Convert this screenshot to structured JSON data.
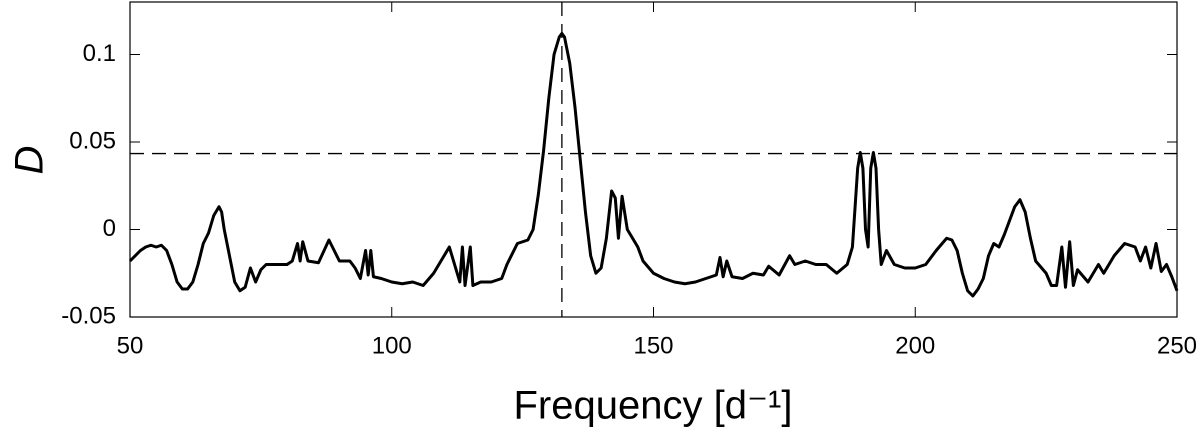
{
  "chart_data": {
    "type": "line",
    "xlabel": "Frequency [d⁻¹]",
    "ylabel": "D",
    "x": [
      50,
      52,
      53,
      54,
      55,
      56,
      57,
      58,
      59,
      60,
      61,
      62,
      63,
      64,
      65,
      66,
      67,
      67.5,
      68,
      69,
      70,
      71,
      72,
      73,
      74,
      75,
      76,
      78,
      80,
      81,
      82,
      82.5,
      83,
      84,
      86,
      88,
      89,
      90,
      92,
      93,
      94,
      95,
      95.5,
      96,
      96.5,
      98,
      100,
      102,
      104,
      106,
      108,
      110,
      111,
      112,
      113,
      113.5,
      114,
      115,
      115.5,
      117,
      119,
      121,
      122,
      124,
      126,
      127,
      128,
      129,
      130,
      131,
      132,
      132.5,
      133,
      134,
      135,
      136,
      137,
      138,
      139,
      140,
      141,
      142,
      142.7,
      143.3,
      144,
      145,
      146,
      147,
      148,
      150,
      152,
      154,
      156,
      158,
      160,
      162,
      162.7,
      163.3,
      164,
      165,
      167,
      169,
      171,
      172,
      174,
      176,
      177,
      179,
      181,
      183,
      185,
      187,
      188,
      189,
      189.5,
      190,
      190.5,
      191,
      191.5,
      192,
      192.5,
      193,
      193.5,
      194.5,
      196,
      198,
      200,
      202,
      204,
      206,
      207,
      208,
      209,
      210,
      211,
      212,
      213,
      214,
      215,
      216,
      217,
      218,
      219,
      220,
      221,
      222,
      223,
      225,
      226,
      227,
      228,
      228.7,
      229.5,
      230.2,
      231,
      233,
      235,
      236,
      238,
      240,
      242,
      243,
      244,
      245,
      246,
      247,
      248,
      249,
      250
    ],
    "series": [
      {
        "color": "#000000",
        "values": [
          -0.018,
          -0.012,
          -0.01,
          -0.009,
          -0.01,
          -0.009,
          -0.012,
          -0.02,
          -0.03,
          -0.034,
          -0.034,
          -0.03,
          -0.02,
          -0.008,
          -0.002,
          0.008,
          0.013,
          0.01,
          0.0,
          -0.015,
          -0.03,
          -0.035,
          -0.033,
          -0.022,
          -0.03,
          -0.023,
          -0.02,
          -0.02,
          -0.02,
          -0.018,
          -0.008,
          -0.018,
          -0.007,
          -0.018,
          -0.019,
          -0.006,
          -0.012,
          -0.018,
          -0.018,
          -0.022,
          -0.028,
          -0.012,
          -0.026,
          -0.012,
          -0.027,
          -0.028,
          -0.03,
          -0.031,
          -0.03,
          -0.032,
          -0.025,
          -0.015,
          -0.01,
          -0.02,
          -0.03,
          -0.01,
          -0.032,
          -0.01,
          -0.032,
          -0.03,
          -0.03,
          -0.028,
          -0.02,
          -0.008,
          -0.006,
          0.0,
          0.02,
          0.045,
          0.075,
          0.1,
          0.11,
          0.112,
          0.11,
          0.095,
          0.07,
          0.04,
          0.01,
          -0.015,
          -0.025,
          -0.022,
          -0.005,
          0.022,
          0.018,
          -0.005,
          0.019,
          0.0,
          -0.005,
          -0.01,
          -0.018,
          -0.025,
          -0.028,
          -0.03,
          -0.031,
          -0.03,
          -0.028,
          -0.026,
          -0.016,
          -0.027,
          -0.018,
          -0.027,
          -0.028,
          -0.025,
          -0.026,
          -0.021,
          -0.026,
          -0.015,
          -0.02,
          -0.018,
          -0.02,
          -0.02,
          -0.025,
          -0.02,
          -0.01,
          0.035,
          0.044,
          0.035,
          0.0,
          -0.01,
          0.035,
          0.044,
          0.035,
          0.0,
          -0.02,
          -0.012,
          -0.02,
          -0.022,
          -0.022,
          -0.02,
          -0.012,
          -0.005,
          -0.006,
          -0.012,
          -0.025,
          -0.035,
          -0.038,
          -0.034,
          -0.028,
          -0.015,
          -0.008,
          -0.01,
          -0.003,
          0.005,
          0.013,
          0.017,
          0.01,
          -0.005,
          -0.018,
          -0.025,
          -0.032,
          -0.032,
          -0.01,
          -0.033,
          -0.007,
          -0.032,
          -0.023,
          -0.03,
          -0.02,
          -0.025,
          -0.015,
          -0.008,
          -0.01,
          -0.018,
          -0.01,
          -0.022,
          -0.008,
          -0.024,
          -0.02,
          -0.027,
          -0.035
        ]
      }
    ],
    "hline": 0.0434,
    "vline": 132.5,
    "xlim": [
      50,
      250
    ],
    "xticks": [
      50,
      100,
      150,
      200,
      250
    ],
    "ylim": [
      -0.05,
      0.13
    ],
    "yticks": [
      -0.05,
      0,
      0.05,
      0.1
    ]
  }
}
